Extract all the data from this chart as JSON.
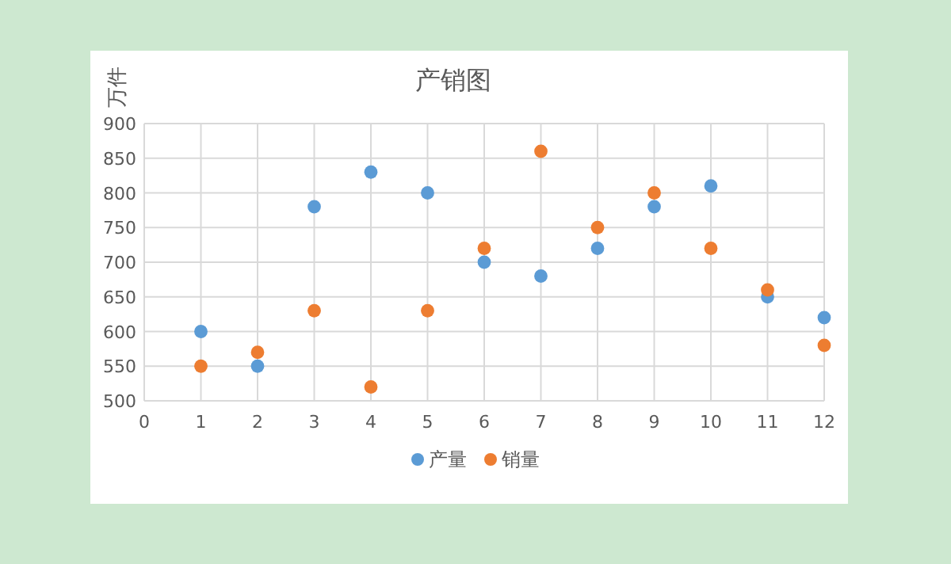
{
  "chart_data": {
    "type": "scatter",
    "title": "产销图",
    "ylabel": "万件",
    "x": [
      1,
      2,
      3,
      4,
      5,
      6,
      7,
      8,
      9,
      10,
      11,
      12
    ],
    "series": [
      {
        "name": "产量",
        "color": "#5b9bd5",
        "values": [
          600,
          550,
          780,
          830,
          800,
          700,
          680,
          720,
          780,
          810,
          650,
          620
        ]
      },
      {
        "name": "销量",
        "color": "#ed7d31",
        "values": [
          550,
          570,
          630,
          520,
          630,
          720,
          860,
          750,
          800,
          720,
          660,
          580
        ]
      }
    ],
    "xlim": [
      0,
      12
    ],
    "xticks": [
      0,
      1,
      2,
      3,
      4,
      5,
      6,
      7,
      8,
      9,
      10,
      11,
      12
    ],
    "ylim": [
      500,
      900
    ],
    "yticks": [
      500,
      550,
      600,
      650,
      700,
      750,
      800,
      850,
      900
    ],
    "grid": true,
    "legend": "bottom",
    "marker": "circle"
  }
}
